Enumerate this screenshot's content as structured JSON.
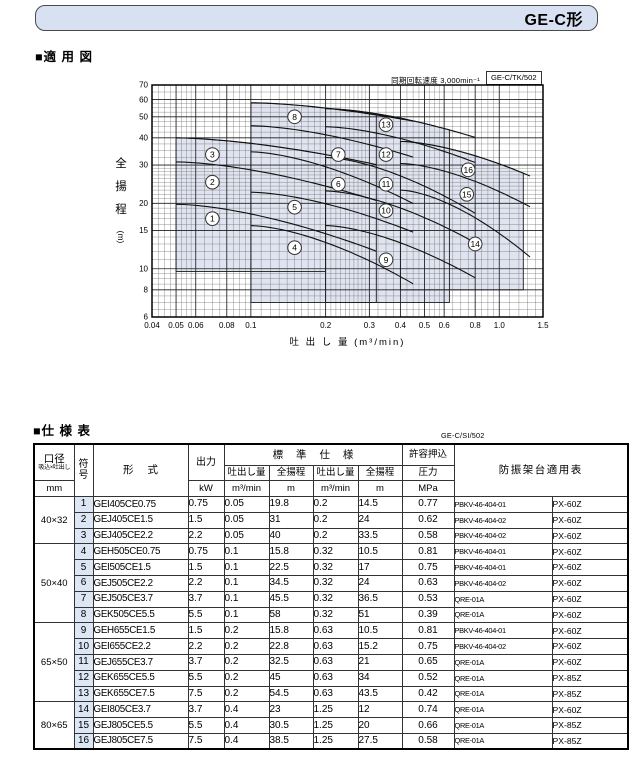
{
  "page": {
    "title": "GE-C形"
  },
  "sections": {
    "chart_title": "■適 用 図",
    "table_title": "■仕 様 表"
  },
  "chart_data": {
    "type": "line",
    "annotation": "同期回転速度 3,000min⁻¹",
    "code_box": "GE-C/TK/502",
    "xlabel": "吐 出 し 量 (m³/min)",
    "ylabel": "全揚程 (m)",
    "ylabel_chars": "全揚程",
    "ylabel_unit": "(m)",
    "x_scale": "log",
    "y_scale": "log",
    "xlim": [
      0.04,
      1.5
    ],
    "ylim": [
      6,
      70
    ],
    "grid": true,
    "x_ticks": [
      {
        "v": 0.04,
        "label": "0.04"
      },
      {
        "v": 0.05,
        "label": "0.05"
      },
      {
        "v": 0.06,
        "label": "0.06"
      },
      {
        "v": 0.08,
        "label": "0.08"
      },
      {
        "v": 0.1,
        "label": "0.1"
      },
      {
        "v": 0.2,
        "label": "0.2"
      },
      {
        "v": 0.3,
        "label": "0.3"
      },
      {
        "v": 0.4,
        "label": "0.4"
      },
      {
        "v": 0.5,
        "label": "0.5"
      },
      {
        "v": 0.6,
        "label": "0.6"
      },
      {
        "v": 0.8,
        "label": "0.8"
      },
      {
        "v": 1.0,
        "label": "1.0"
      },
      {
        "v": 1.5,
        "label": "1.5"
      }
    ],
    "y_ticks": [
      {
        "v": 70,
        "label": "70"
      },
      {
        "v": 60,
        "label": "60"
      },
      {
        "v": 50,
        "label": "50"
      },
      {
        "v": 40,
        "label": "40"
      },
      {
        "v": 30,
        "label": "30"
      },
      {
        "v": 20,
        "label": "20"
      },
      {
        "v": 15,
        "label": "15"
      },
      {
        "v": 10,
        "label": "10"
      },
      {
        "v": 8,
        "label": "8"
      },
      {
        "v": 6,
        "label": "6"
      }
    ],
    "region_fill": "#e0e3f0",
    "groups": [
      {
        "size": "40×32",
        "q1": 0.05,
        "q2": 0.2,
        "qe": 0.32,
        "h_bottom": 9.7,
        "pumps": [
          {
            "no": 1,
            "h1": 19.8,
            "h2": 14.5,
            "label": [
              0.07,
              17
            ]
          },
          {
            "no": 2,
            "h1": 31,
            "h2": 24,
            "label": [
              0.07,
              25
            ]
          },
          {
            "no": 3,
            "h1": 40,
            "h2": 33.5,
            "label": [
              0.07,
              33.5
            ]
          }
        ]
      },
      {
        "size": "50×40",
        "q1": 0.1,
        "q2": 0.32,
        "qe": 0.45,
        "h_bottom": 7,
        "pumps": [
          {
            "no": 4,
            "h1": 15.8,
            "h2": 10.5,
            "label": [
              0.15,
              12.5
            ]
          },
          {
            "no": 5,
            "h1": 22.5,
            "h2": 17,
            "label": [
              0.15,
              19.2
            ]
          },
          {
            "no": 6,
            "h1": 34.5,
            "h2": 24,
            "label": [
              0.225,
              24.5
            ]
          },
          {
            "no": 7,
            "h1": 45.5,
            "h2": 36.5,
            "label": [
              0.225,
              33.5
            ]
          },
          {
            "no": 8,
            "h1": 58,
            "h2": 51,
            "label": [
              0.15,
              50
            ]
          }
        ]
      },
      {
        "size": "65×50",
        "q1": 0.2,
        "q2": 0.63,
        "qe": 0.8,
        "h_bottom": 7,
        "pumps": [
          {
            "no": 9,
            "h1": 15.8,
            "h2": 10.5,
            "label": [
              0.35,
              11
            ]
          },
          {
            "no": 10,
            "h1": 22.8,
            "h2": 15.2,
            "label": [
              0.35,
              18.5
            ]
          },
          {
            "no": 11,
            "h1": 32.5,
            "h2": 21,
            "label": [
              0.35,
              24.5
            ]
          },
          {
            "no": 12,
            "h1": 45,
            "h2": 34,
            "label": [
              0.35,
              33.5
            ]
          },
          {
            "no": 13,
            "h1": 54.5,
            "h2": 43.5,
            "label": [
              0.35,
              46
            ]
          }
        ]
      },
      {
        "size": "80×65",
        "q1": 0.4,
        "q2": 1.25,
        "qe": 1.33,
        "h_bottom": 8,
        "pumps": [
          {
            "no": 14,
            "h1": 23,
            "h2": 12,
            "label": [
              0.8,
              13
            ]
          },
          {
            "no": 15,
            "h1": 30.5,
            "h2": 20,
            "label": [
              0.74,
              22
            ]
          },
          {
            "no": 16,
            "h1": 38.5,
            "h2": 27.5,
            "label": [
              0.75,
              28.5
            ]
          }
        ]
      }
    ]
  },
  "spec_table": {
    "code": "GE-C/SI/502",
    "header": {
      "bore": "口径",
      "bore_sub": "吸込×吐出し",
      "bore_unit": "mm",
      "code": "符号",
      "model": "形式",
      "output": "出力",
      "output_unit": "kW",
      "std": "標 準 仕 様",
      "q": "吐出し量",
      "h": "全揚程",
      "q_unit": "m³/min",
      "h_unit": "m",
      "inlet1": "許容押込",
      "inlet2": "圧力",
      "inlet_unit": "MPa",
      "mount": "防振架台適用表"
    },
    "groups": [
      {
        "size": "40×32",
        "rows": [
          {
            "no": "1",
            "model": "GEI405CE0.75",
            "kw": "0.75",
            "q1": "0.05",
            "h1": "19.8",
            "q2": "0.2",
            "h2": "14.5",
            "mpa": "0.77",
            "mount": "PBKV-46-404-01",
            "px": "PX-60Z"
          },
          {
            "no": "2",
            "model": "GEJ405CE1.5",
            "kw": "1.5",
            "q1": "0.05",
            "h1": "31",
            "q2": "0.2",
            "h2": "24",
            "mpa": "0.62",
            "mount": "PBKV-46-404-02",
            "px": "PX-60Z"
          },
          {
            "no": "3",
            "model": "GEJ405CE2.2",
            "kw": "2.2",
            "q1": "0.05",
            "h1": "40",
            "q2": "0.2",
            "h2": "33.5",
            "mpa": "0.58",
            "mount": "PBKV-46-404-02",
            "px": "PX-60Z"
          }
        ]
      },
      {
        "size": "50×40",
        "rows": [
          {
            "no": "4",
            "model": "GEH505CE0.75",
            "kw": "0.75",
            "q1": "0.1",
            "h1": "15.8",
            "q2": "0.32",
            "h2": "10.5",
            "mpa": "0.81",
            "mount": "PBKV-46-404-01",
            "px": "PX-60Z"
          },
          {
            "no": "5",
            "model": "GEI505CE1.5",
            "kw": "1.5",
            "q1": "0.1",
            "h1": "22.5",
            "q2": "0.32",
            "h2": "17",
            "mpa": "0.75",
            "mount": "PBKV-46-404-01",
            "px": "PX-60Z"
          },
          {
            "no": "6",
            "model": "GEJ505CE2.2",
            "kw": "2.2",
            "q1": "0.1",
            "h1": "34.5",
            "q2": "0.32",
            "h2": "24",
            "mpa": "0.63",
            "mount": "PBKV-46-404-02",
            "px": "PX-60Z"
          },
          {
            "no": "7",
            "model": "GEJ505CE3.7",
            "kw": "3.7",
            "q1": "0.1",
            "h1": "45.5",
            "q2": "0.32",
            "h2": "36.5",
            "mpa": "0.53",
            "mount": "QRE-01A",
            "px": "PX-60Z"
          },
          {
            "no": "8",
            "model": "GEK505CE5.5",
            "kw": "5.5",
            "q1": "0.1",
            "h1": "58",
            "q2": "0.32",
            "h2": "51",
            "mpa": "0.39",
            "mount": "QRE-01A",
            "px": "PX-60Z"
          }
        ]
      },
      {
        "size": "65×50",
        "rows": [
          {
            "no": "9",
            "model": "GEH655CE1.5",
            "kw": "1.5",
            "q1": "0.2",
            "h1": "15.8",
            "q2": "0.63",
            "h2": "10.5",
            "mpa": "0.81",
            "mount": "PBKV-46-404-01",
            "px": "PX-60Z"
          },
          {
            "no": "10",
            "model": "GEI655CE2.2",
            "kw": "2.2",
            "q1": "0.2",
            "h1": "22.8",
            "q2": "0.63",
            "h2": "15.2",
            "mpa": "0.75",
            "mount": "PBKV-46-404-02",
            "px": "PX-60Z"
          },
          {
            "no": "11",
            "model": "GEJ655CE3.7",
            "kw": "3.7",
            "q1": "0.2",
            "h1": "32.5",
            "q2": "0.63",
            "h2": "21",
            "mpa": "0.65",
            "mount": "QRE-01A",
            "px": "PX-60Z"
          },
          {
            "no": "12",
            "model": "GEK655CE5.5",
            "kw": "5.5",
            "q1": "0.2",
            "h1": "45",
            "q2": "0.63",
            "h2": "34",
            "mpa": "0.52",
            "mount": "QRE-01A",
            "px": "PX-85Z"
          },
          {
            "no": "13",
            "model": "GEK655CE7.5",
            "kw": "7.5",
            "q1": "0.2",
            "h1": "54.5",
            "q2": "0.63",
            "h2": "43.5",
            "mpa": "0.42",
            "mount": "QRE-01A",
            "px": "PX-85Z"
          }
        ]
      },
      {
        "size": "80×65",
        "rows": [
          {
            "no": "14",
            "model": "GEI805CE3.7",
            "kw": "3.7",
            "q1": "0.4",
            "h1": "23",
            "q2": "1.25",
            "h2": "12",
            "mpa": "0.74",
            "mount": "QRE-01A",
            "px": "PX-60Z"
          },
          {
            "no": "15",
            "model": "GEJ805CE5.5",
            "kw": "5.5",
            "q1": "0.4",
            "h1": "30.5",
            "q2": "1.25",
            "h2": "20",
            "mpa": "0.66",
            "mount": "QRE-01A",
            "px": "PX-85Z"
          },
          {
            "no": "16",
            "model": "GEJ805CE7.5",
            "kw": "7.5",
            "q1": "0.4",
            "h1": "38.5",
            "q2": "1.25",
            "h2": "27.5",
            "mpa": "0.58",
            "mount": "QRE-01A",
            "px": "PX-85Z"
          }
        ]
      }
    ]
  },
  "colors": {
    "title_bar_bg": "#d8e1f1",
    "region_fill": "#e0e3f0",
    "code_col_bg": "#dce6f4",
    "grid_major": "#222222",
    "grid_minor": "#666666"
  }
}
